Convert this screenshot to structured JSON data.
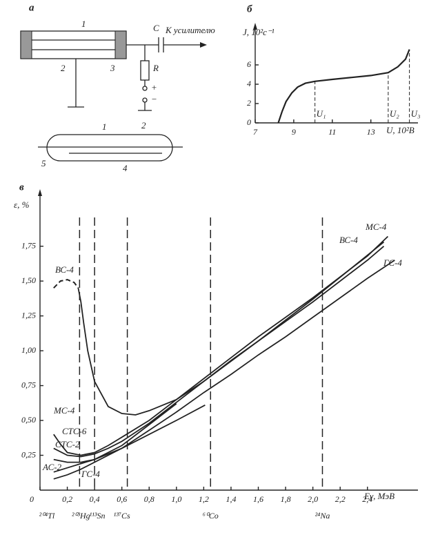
{
  "diagram": {
    "panel_label": "а",
    "labels": [
      "1",
      "2",
      "3",
      "C",
      "К усилителю",
      "R",
      "+",
      "−",
      "1",
      "2",
      "5",
      "4"
    ]
  },
  "chart_data": [
    {
      "type": "line",
      "panel_label": "б",
      "y_label": "J, 10²c⁻¹",
      "x_label": "U, 10²В",
      "xlim": [
        7,
        15.3
      ],
      "xticks": [
        7,
        9,
        11,
        13
      ],
      "ylim": [
        0,
        9.5
      ],
      "yticks": [
        0,
        2,
        4,
        6
      ],
      "color": "#222",
      "x": [
        8.2,
        8.4,
        8.6,
        8.9,
        9.2,
        9.6,
        10.1,
        11,
        12,
        13,
        13.9,
        14.4,
        14.8,
        15.0
      ],
      "values": [
        0,
        1.2,
        2.2,
        3.1,
        3.7,
        4.1,
        4.3,
        4.5,
        4.7,
        4.9,
        5.2,
        5.8,
        6.6,
        7.6
      ],
      "annotations": [
        {
          "text": "U₁",
          "x": 10.1
        },
        {
          "text": "U₂",
          "x": 13.9
        },
        {
          "text": "U₃",
          "x": 15.0
        }
      ]
    },
    {
      "type": "line",
      "panel_label": "в",
      "y_label": "ε, %",
      "x_label": "Eγ, МэВ",
      "color": "#222",
      "xlim": [
        0,
        2.75
      ],
      "xticks": [
        {
          "value": 0,
          "label": "0"
        },
        {
          "value": 0.2,
          "label": "0,2"
        },
        {
          "value": 0.4,
          "label": "0,4"
        },
        {
          "value": 0.6,
          "label": "0,6"
        },
        {
          "value": 0.8,
          "label": "0,8"
        },
        {
          "value": 1.0,
          "label": "1,0"
        },
        {
          "value": 1.2,
          "label": "1,2"
        },
        {
          "value": 1.4,
          "label": "1,4"
        },
        {
          "value": 1.6,
          "label": "1,6"
        },
        {
          "value": 1.8,
          "label": "1,8"
        },
        {
          "value": 2.0,
          "label": "2,0"
        },
        {
          "value": 2.2,
          "label": "2,2"
        },
        {
          "value": 2.4,
          "label": "2,4"
        }
      ],
      "ylim": [
        0,
        2.1
      ],
      "yticks": [
        {
          "value": 0.25,
          "label": "0,25"
        },
        {
          "value": 0.5,
          "label": "0,50"
        },
        {
          "value": 0.75,
          "label": "0,75"
        },
        {
          "value": 1.0,
          "label": "1,00"
        },
        {
          "value": 1.25,
          "label": "1,25"
        },
        {
          "value": 1.5,
          "label": "1,50"
        },
        {
          "value": 1.75,
          "label": "1,75"
        }
      ],
      "dashed_lines": [
        0.29,
        0.4,
        0.64,
        1.25,
        2.07
      ],
      "isotopes": [
        {
          "label": "²⁰⁴Tl",
          "x": 0.05
        },
        {
          "label": "²⁰³Hg",
          "x": 0.3
        },
        {
          "label": "¹¹³Sn",
          "x": 0.42
        },
        {
          "label": "¹³⁷Cs",
          "x": 0.6
        },
        {
          "label": "⁶⁰Co",
          "x": 1.25
        },
        {
          "label": "²⁴Na",
          "x": 2.07
        }
      ],
      "series": [
        {
          "name": "ВС-4",
          "dashed_x": [
            0.1,
            0.15,
            0.2,
            0.25,
            0.28
          ],
          "dashed_values": [
            1.45,
            1.5,
            1.51,
            1.49,
            1.45
          ],
          "x": [
            0.28,
            0.3,
            0.32,
            0.35,
            0.4,
            0.5,
            0.6,
            0.7,
            0.8,
            1.0,
            1.2,
            1.4,
            1.6,
            1.8,
            2.0,
            2.2,
            2.4,
            2.52
          ],
          "values": [
            1.45,
            1.35,
            1.2,
            1.0,
            0.78,
            0.6,
            0.55,
            0.54,
            0.57,
            0.65,
            0.78,
            0.93,
            1.07,
            1.21,
            1.35,
            1.5,
            1.65,
            1.75
          ]
        },
        {
          "name": "МС-4",
          "x": [
            0.1,
            0.15,
            0.2,
            0.3,
            0.4,
            0.5,
            0.6,
            0.8,
            1.0,
            1.2,
            1.4,
            1.6,
            1.8,
            2.0,
            2.2,
            2.4,
            2.55
          ],
          "values": [
            0.4,
            0.33,
            0.27,
            0.25,
            0.27,
            0.32,
            0.38,
            0.5,
            0.65,
            0.8,
            0.95,
            1.1,
            1.24,
            1.38,
            1.53,
            1.68,
            1.82
          ]
        },
        {
          "name": "СТС-6",
          "x": [
            0.1,
            0.2,
            0.3,
            0.4,
            0.5,
            0.6,
            0.8,
            1.0,
            1.2,
            1.6,
            2.0,
            2.52
          ],
          "values": [
            0.3,
            0.25,
            0.24,
            0.26,
            0.3,
            0.35,
            0.48,
            0.63,
            0.78,
            1.07,
            1.37,
            1.78
          ]
        },
        {
          "name": "СТС-2",
          "x": [
            0.1,
            0.2,
            0.3,
            0.4,
            0.6,
            0.8,
            1.0,
            1.21
          ],
          "values": [
            0.22,
            0.2,
            0.2,
            0.22,
            0.3,
            0.4,
            0.5,
            0.61
          ]
        },
        {
          "name": "АС-2",
          "x": [
            0.1,
            0.2,
            0.3,
            0.4,
            0.6,
            0.8,
            1.0
          ],
          "values": [
            0.13,
            0.16,
            0.19,
            0.22,
            0.32,
            0.47,
            0.62
          ]
        },
        {
          "name": "ГС-4",
          "x": [
            0.1,
            0.2,
            0.3,
            0.4,
            0.6,
            0.8,
            1.0,
            1.2,
            1.4,
            1.6,
            1.8,
            2.0,
            2.2,
            2.4,
            2.6
          ],
          "values": [
            0.08,
            0.11,
            0.15,
            0.2,
            0.3,
            0.43,
            0.56,
            0.7,
            0.83,
            0.97,
            1.1,
            1.24,
            1.38,
            1.52,
            1.65
          ]
        }
      ]
    }
  ]
}
